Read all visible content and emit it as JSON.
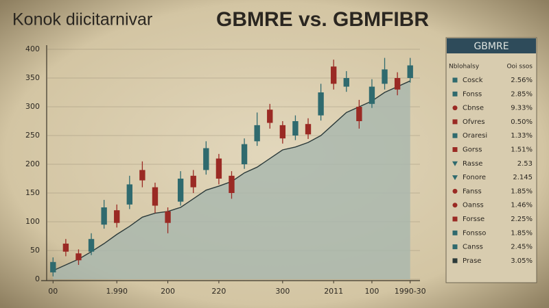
{
  "chart_data": {
    "type": "candlestick",
    "title": "GBMRE vs. GBMFIBR",
    "subtitle": "Konok diicitarnivar",
    "open": [
      12,
      62,
      45,
      48,
      95,
      120,
      130,
      190,
      160,
      118,
      135,
      180,
      190,
      210,
      180,
      200,
      240,
      295,
      268,
      250,
      270,
      285,
      370,
      335,
      300,
      305,
      340,
      350,
      350
    ],
    "close": [
      30,
      48,
      33,
      70,
      125,
      98,
      165,
      172,
      128,
      98,
      175,
      160,
      228,
      175,
      150,
      235,
      268,
      272,
      245,
      275,
      252,
      325,
      340,
      350,
      275,
      335,
      365,
      330,
      372
    ],
    "high": [
      38,
      70,
      52,
      80,
      138,
      130,
      180,
      205,
      168,
      125,
      188,
      190,
      240,
      218,
      188,
      245,
      290,
      305,
      275,
      285,
      280,
      340,
      382,
      362,
      312,
      348,
      385,
      360,
      385
    ],
    "low": [
      5,
      40,
      25,
      42,
      88,
      90,
      122,
      160,
      115,
      80,
      128,
      150,
      182,
      165,
      140,
      192,
      232,
      262,
      236,
      242,
      244,
      276,
      330,
      326,
      262,
      298,
      330,
      320,
      342
    ],
    "average": [
      15,
      25,
      35,
      48,
      62,
      78,
      92,
      108,
      115,
      118,
      125,
      140,
      155,
      162,
      170,
      185,
      195,
      210,
      225,
      230,
      238,
      250,
      270,
      290,
      300,
      310,
      325,
      335,
      345
    ],
    "up_color": "#2f6a6e",
    "down_color": "#9a2a24",
    "area_color": "#a7b6ae",
    "line_color": "#2b3a3a",
    "ylim": [
      0,
      400
    ],
    "yticks": [
      0,
      50,
      100,
      150,
      200,
      250,
      300,
      350,
      400
    ],
    "xlim": [
      -0.5,
      28.5
    ],
    "xticks": [
      {
        "value": 0,
        "label": "00"
      },
      {
        "value": 5,
        "label": "1.990"
      },
      {
        "value": 9,
        "label": "200"
      },
      {
        "value": 13,
        "label": "220"
      },
      {
        "value": 18,
        "label": "300"
      },
      {
        "value": 22,
        "label": "2011"
      },
      {
        "value": 25,
        "label": "100"
      },
      {
        "value": 28,
        "label": "1990-30"
      }
    ],
    "grid": true
  },
  "panel": {
    "title": "GBMRE",
    "headers": [
      "Nblohalsy",
      "Ooi ssos"
    ],
    "rows": [
      {
        "name": "Cosck",
        "value": "2.56%",
        "color": "#2f6a6e",
        "marker": "square"
      },
      {
        "name": "Fonss",
        "value": "2.85%",
        "color": "#2f6a6e",
        "marker": "square"
      },
      {
        "name": "Cbnse",
        "value": "9.33%",
        "color": "#9a2a24",
        "marker": "circle"
      },
      {
        "name": "Ofvres",
        "value": "0.50%",
        "color": "#9a2a24",
        "marker": "square"
      },
      {
        "name": "Oraresi",
        "value": "1.33%",
        "color": "#2f6a6e",
        "marker": "square"
      },
      {
        "name": "Gorss",
        "value": "1.51%",
        "color": "#9a2a24",
        "marker": "square"
      },
      {
        "name": "Rasse",
        "value": "2.53",
        "color": "#2f6a6e",
        "marker": "triangle"
      },
      {
        "name": "Fonore",
        "value": "2.145",
        "color": "#2f6a6e",
        "marker": "triangle"
      },
      {
        "name": "Fanss",
        "value": "1.85%",
        "color": "#9a2a24",
        "marker": "circle"
      },
      {
        "name": "Oanss",
        "value": "1.46%",
        "color": "#9a2a24",
        "marker": "circle"
      },
      {
        "name": "Forsse",
        "value": "2.25%",
        "color": "#9a2a24",
        "marker": "square"
      },
      {
        "name": "Fonsso",
        "value": "1.85%",
        "color": "#2f6a6e",
        "marker": "square"
      },
      {
        "name": "Canss",
        "value": "2.45%",
        "color": "#2f6a6e",
        "marker": "square"
      },
      {
        "name": "Prase",
        "value": "3.05%",
        "color": "#2b3a3a",
        "marker": "square"
      }
    ]
  }
}
